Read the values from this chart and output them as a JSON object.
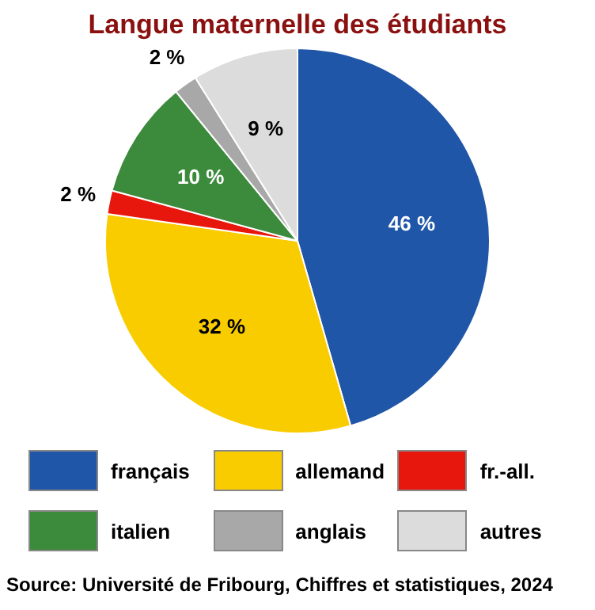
{
  "chart_data": {
    "type": "pie",
    "title": "Langue maternelle des étudiants",
    "categories": [
      "français",
      "allemand",
      "fr.-all.",
      "italien",
      "anglais",
      "autres"
    ],
    "values": [
      46,
      32,
      2,
      10,
      2,
      9
    ],
    "colors": [
      "#1f56a8",
      "#f9cc00",
      "#e8170e",
      "#3c8a3c",
      "#a8a8a8",
      "#dcdcdc"
    ],
    "value_labels": [
      "46 %",
      "32 %",
      "2 %",
      "10 %",
      "2 %",
      "9 %"
    ],
    "legend": "bottom",
    "annotations": [
      "Source: Université de Fribourg, Chiffres et statistiques, 2024"
    ]
  }
}
